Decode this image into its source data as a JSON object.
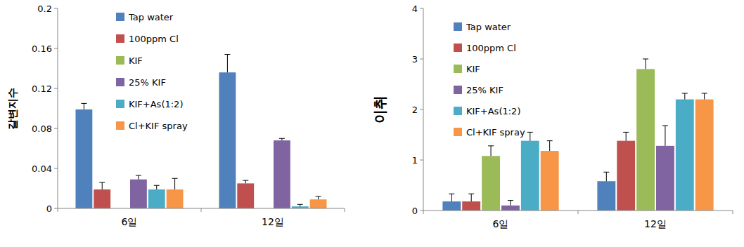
{
  "chart_data": [
    {
      "type": "bar",
      "y_label": "갈변지수",
      "categories": [
        "6일",
        "12일"
      ],
      "ylim": [
        0,
        0.2
      ],
      "yticks": [
        0,
        0.04,
        0.08,
        0.12,
        0.16,
        0.2
      ],
      "legend": "upper left",
      "grid": false,
      "series": [
        {
          "name": "Tap water",
          "color": "#4f81bd",
          "values": [
            0.099,
            0.136
          ],
          "errors": [
            0.006,
            0.018
          ]
        },
        {
          "name": "100ppm Cl",
          "color": "#c0504d",
          "values": [
            0.019,
            0.025
          ],
          "errors": [
            0.007,
            0.003
          ]
        },
        {
          "name": "KIF",
          "color": "#9bbb59",
          "values": [
            null,
            null
          ],
          "errors": [
            null,
            null
          ]
        },
        {
          "name": "25% KIF",
          "color": "#8064a2",
          "values": [
            0.029,
            0.068
          ],
          "errors": [
            0.004,
            0.002
          ]
        },
        {
          "name": "KIF+As(1:2)",
          "color": "#4bacc6",
          "values": [
            0.019,
            0.002
          ],
          "errors": [
            0.004,
            0.002
          ]
        },
        {
          "name": "Cl+KIF spray",
          "color": "#f79646",
          "values": [
            0.019,
            0.009
          ],
          "errors": [
            0.011,
            0.003
          ]
        }
      ]
    },
    {
      "type": "bar",
      "y_label": "이취",
      "categories": [
        "6일",
        "12일"
      ],
      "ylim": [
        0,
        4
      ],
      "yticks": [
        0,
        1,
        2,
        3,
        4
      ],
      "legend": "upper left",
      "grid": false,
      "series": [
        {
          "name": "Tap water",
          "color": "#4f81bd",
          "values": [
            0.18,
            0.58
          ],
          "errors": [
            0.15,
            0.18
          ]
        },
        {
          "name": "100ppm Cl",
          "color": "#c0504d",
          "values": [
            0.18,
            1.38
          ],
          "errors": [
            0.15,
            0.17
          ]
        },
        {
          "name": "KIF",
          "color": "#9bbb59",
          "values": [
            1.08,
            2.8
          ],
          "errors": [
            0.2,
            0.2
          ]
        },
        {
          "name": "25% KIF",
          "color": "#8064a2",
          "values": [
            0.1,
            1.28
          ],
          "errors": [
            0.1,
            0.4
          ]
        },
        {
          "name": "KIF+As(1:2)",
          "color": "#4bacc6",
          "values": [
            1.38,
            2.2
          ],
          "errors": [
            0.17,
            0.12
          ]
        },
        {
          "name": "Cl+KIF spray",
          "color": "#f79646",
          "values": [
            1.18,
            2.2
          ],
          "errors": [
            0.2,
            0.12
          ]
        }
      ]
    }
  ]
}
